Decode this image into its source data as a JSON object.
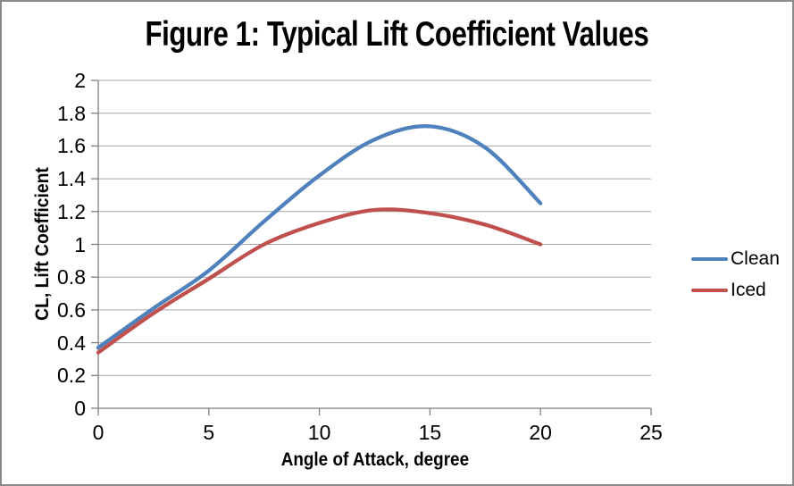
{
  "chart_data": {
    "type": "line",
    "title": "Figure 1: Typical Lift Coefficient Values",
    "xlabel": "Angle of Attack, degree",
    "ylabel": "CL, Lift Coefficient",
    "x": [
      0,
      2.5,
      5,
      7.5,
      10,
      12.5,
      15,
      17.5,
      20
    ],
    "series": [
      {
        "name": "Clean",
        "color": "#4F81BD",
        "values": [
          0.37,
          0.61,
          0.84,
          1.14,
          1.42,
          1.64,
          1.72,
          1.59,
          1.25
        ]
      },
      {
        "name": "Iced",
        "color": "#C0504D",
        "values": [
          0.34,
          0.58,
          0.79,
          1.0,
          1.13,
          1.21,
          1.19,
          1.12,
          1.0
        ]
      }
    ],
    "xlim": [
      0,
      25
    ],
    "ylim": [
      0,
      2
    ],
    "x_ticks": [
      "0",
      "5",
      "10",
      "15",
      "20",
      "25"
    ],
    "y_ticks": [
      "0",
      "0.2",
      "0.4",
      "0.6",
      "0.8",
      "1",
      "1.2",
      "1.4",
      "1.6",
      "1.8",
      "2"
    ],
    "grid": "horizontal-only",
    "legend_position": "right-middle",
    "smooth": true
  },
  "colors": {
    "clean_line": "#4F81BD",
    "iced_line": "#C0504D",
    "gridline": "#A6A6A6",
    "axis_line": "#808080",
    "window_border": "#8A8A8A",
    "background": "#FFFFFF",
    "text": "#000000"
  }
}
